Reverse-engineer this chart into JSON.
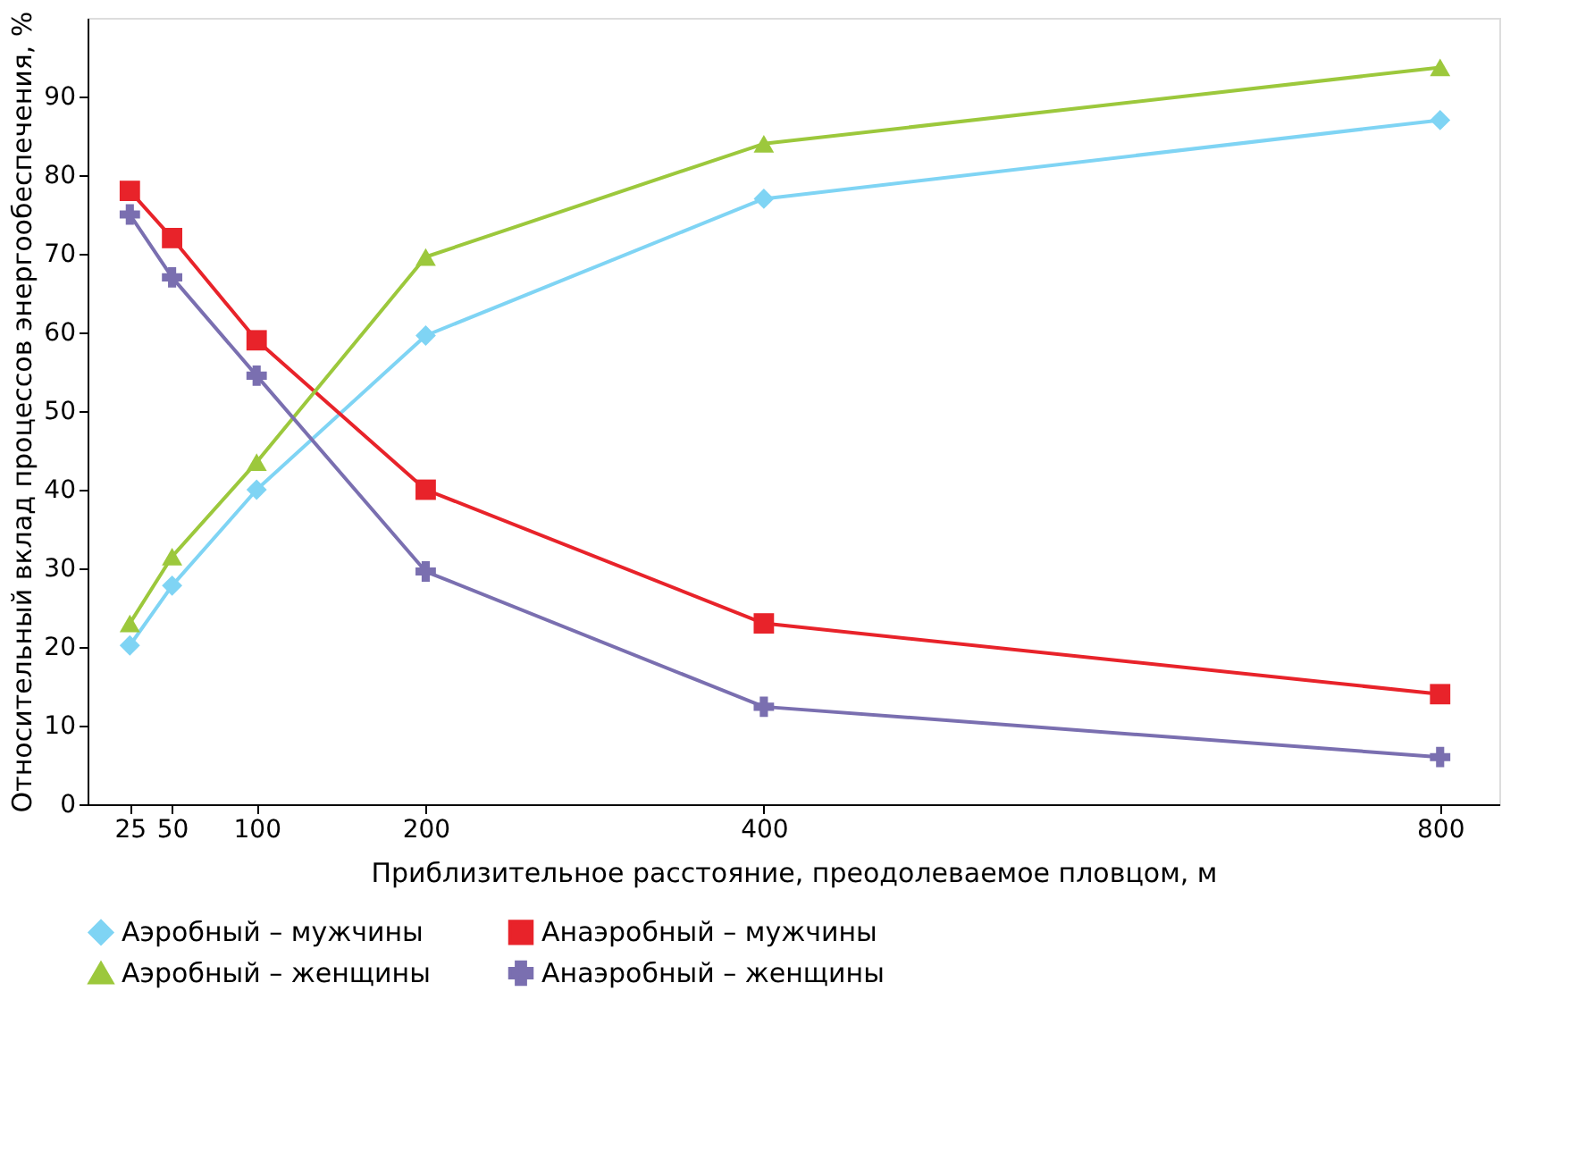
{
  "chart_data": {
    "type": "line",
    "xlabel": "Приблизительное расстояние, преодолеваемое пловцом, м",
    "ylabel": "Относительный вклад процессов энергообеспечения, %",
    "x": [
      25,
      50,
      100,
      200,
      400,
      800
    ],
    "series": [
      {
        "name": "Аэробный – мужчины",
        "color": "#7fd4f4",
        "marker": "diamond",
        "values": [
          20.2,
          27.8,
          40,
          59.6,
          77,
          87
        ]
      },
      {
        "name": "Анаэробный – мужчины",
        "color": "#e8232a",
        "marker": "square",
        "values": [
          78,
          72,
          59,
          40,
          23,
          14
        ]
      },
      {
        "name": "Аэробный – женщины",
        "color": "#9cc83c",
        "marker": "triangle",
        "values": [
          23,
          31.5,
          43.5,
          69.6,
          84,
          93.7
        ]
      },
      {
        "name": "Анаэробный – женщины",
        "color": "#7a6fb0",
        "marker": "cross",
        "values": [
          75,
          67,
          54.5,
          29.6,
          12.4,
          6
        ]
      }
    ],
    "xlim": [
      0,
      835
    ],
    "xticks": [
      25,
      50,
      100,
      200,
      400,
      800
    ],
    "ylim": [
      0,
      100
    ],
    "yticks": [
      0,
      10,
      20,
      30,
      40,
      50,
      60,
      70,
      80,
      90
    ],
    "grid": false,
    "legend": "bottom",
    "line_style": "solid"
  }
}
